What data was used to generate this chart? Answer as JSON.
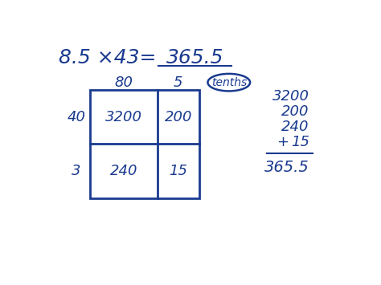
{
  "background_color": "#ffffff",
  "ink_color": "#1a3a8f",
  "col_headers": [
    "80",
    "5"
  ],
  "tenths_label": "tenths",
  "row_headers": [
    "40",
    "3"
  ],
  "cell_values": [
    [
      "3200",
      "200"
    ],
    [
      "240",
      "15"
    ]
  ],
  "sum_values": [
    "3200",
    "200",
    "240",
    "15"
  ],
  "total": "365.5",
  "font_size_title": 18,
  "font_size_cells": 13,
  "font_size_headers": 13,
  "font_size_sum": 13,
  "font_size_tenths": 10
}
